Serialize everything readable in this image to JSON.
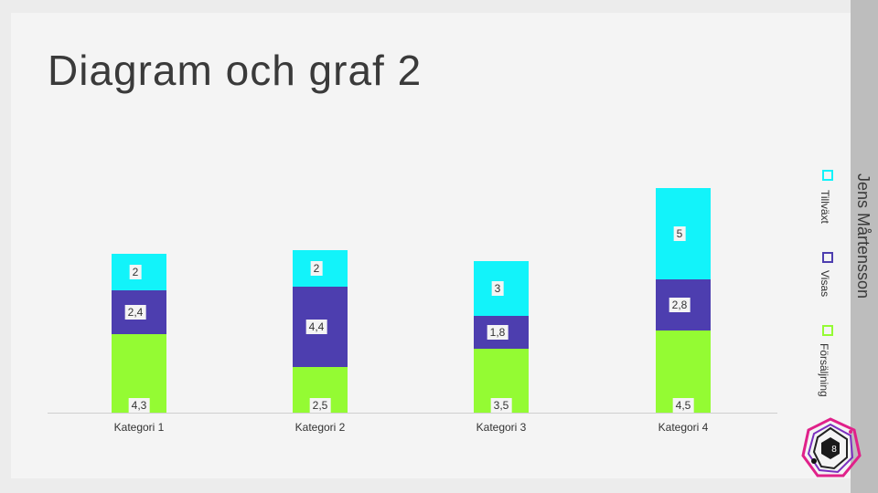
{
  "title": "Diagram och graf 2",
  "author": "Jens Mårtensson",
  "page_number": "8",
  "colors": {
    "forsaljning": "#94fb33",
    "visas": "#4d3eaf",
    "tillvaxt": "#12f3fa"
  },
  "chart_data": {
    "type": "bar",
    "stacked": true,
    "categories": [
      "Kategori 1",
      "Kategori 2",
      "Kategori 3",
      "Kategori 4"
    ],
    "series": [
      {
        "name": "Försäljning",
        "values": [
          4.3,
          2.5,
          3.5,
          4.5
        ],
        "labels": [
          "4,3",
          "2,5",
          "3,5",
          "4,5"
        ],
        "color": "#94fb33"
      },
      {
        "name": "Visas",
        "values": [
          2.4,
          4.4,
          1.8,
          2.8
        ],
        "labels": [
          "2,4",
          "4,4",
          "1,8",
          "2,8"
        ],
        "color": "#4d3eaf"
      },
      {
        "name": "Tillväxt",
        "values": [
          2,
          2,
          3,
          5
        ],
        "labels": [
          "2",
          "2",
          "3",
          "5"
        ],
        "color": "#12f3fa"
      }
    ],
    "legend_position": "right",
    "grid": false
  }
}
